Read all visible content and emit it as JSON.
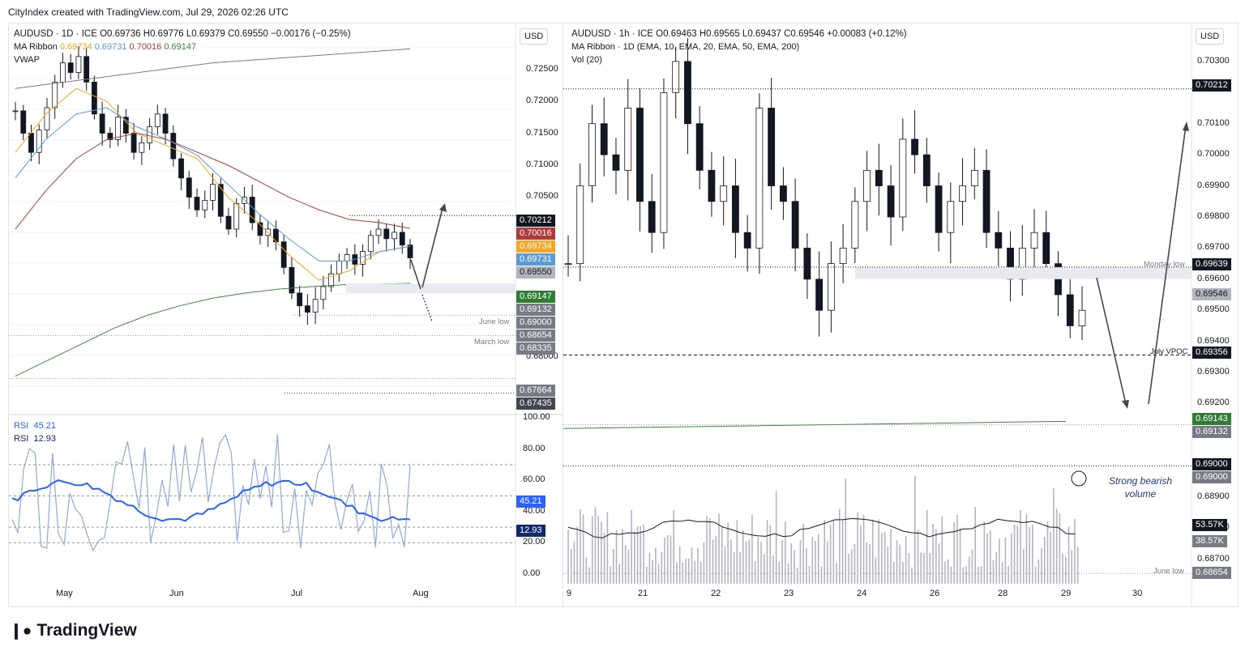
{
  "header": {
    "credit": "CityIndex created with TradingView.com, Jul 29, 2026 02:26 UTC"
  },
  "brand": {
    "logo_text": "TradingView"
  },
  "left_chart": {
    "symbol_line": "AUDUSD · 1D · ICE  O0.69736  H0.69776  L0.69379  C0.69550  −0.00176 (−0.25%)",
    "ribbon_label": "MA Ribbon",
    "ribbon_values": [
      {
        "value": "0.69734",
        "color": "#f5a623"
      },
      {
        "value": "0.69731",
        "color": "#5b9bd5"
      },
      {
        "value": "0.70016",
        "color": "#b03a3a"
      },
      {
        "value": "0.69147",
        "color": "#3a8a3a"
      }
    ],
    "vwap_label": "VWAP",
    "currency_button": "USD",
    "y_ticks": [
      "0.72500",
      "0.72000",
      "0.71500",
      "0.71000",
      "0.70500",
      "0.68000"
    ],
    "price_badges": [
      {
        "text": "0.70212",
        "color": "#131722"
      },
      {
        "text": "0.70016",
        "color": "#b03a3a"
      },
      {
        "text": "0.69734",
        "color": "#f5a623"
      },
      {
        "text": "0.69731",
        "color": "#5b9bd5"
      },
      {
        "text": "0.69550",
        "color": "#b2b5be"
      },
      {
        "text": "0.69147",
        "color": "#2e7d32"
      },
      {
        "text": "0.69132",
        "color": "#787b86"
      },
      {
        "text": "0.69000",
        "color": "#787b86"
      },
      {
        "text": "0.68654",
        "color": "#787b86"
      },
      {
        "text": "0.68335",
        "color": "#787b86"
      },
      {
        "text": "0.67664",
        "color": "#787b86"
      },
      {
        "text": "0.67435",
        "color": "#434651"
      }
    ],
    "level_labels": [
      "June low",
      "March low"
    ],
    "x_ticks": [
      "May",
      "Jun",
      "Jul",
      "Aug"
    ],
    "rsi": {
      "labels": [
        {
          "name": "RSI",
          "value": "45.21"
        },
        {
          "name": "RSI",
          "value": "12.93"
        }
      ],
      "y_ticks": [
        "100.00",
        "80.00",
        "60.00",
        "40.00",
        "20.00",
        "0.00"
      ],
      "badges": [
        {
          "text": "45.21",
          "color": "#2962ff"
        },
        {
          "text": "12.93",
          "color": "#0d2a6e"
        }
      ]
    }
  },
  "right_chart": {
    "symbol_line": "AUDUSD · 1h · ICE  O0.69463  H0.69565  L0.69437  C0.69546  +0.00083 (+0.12%)",
    "ribbon_line": "MA Ribbon · 1D (EMA, 10, EMA, 20, EMA, 50, EMA, 200)",
    "vol_label": "Vol (20)",
    "currency_button": "USD",
    "y_ticks": [
      "0.70300",
      "0.70100",
      "0.70000",
      "0.69900",
      "0.69800",
      "0.69700",
      "0.69600",
      "0.69500",
      "0.69400",
      "0.69300",
      "0.69200",
      "0.68900",
      "0.68800",
      "0.68700"
    ],
    "price_badges": [
      {
        "text": "0.70212",
        "color": "#131722"
      },
      {
        "text": "0.69639",
        "color": "#131722"
      },
      {
        "text": "0.69546",
        "color": "#b2b5be"
      },
      {
        "text": "0.69356",
        "color": "#131722"
      },
      {
        "text": "0.69143",
        "color": "#2e7d32"
      },
      {
        "text": "0.69132",
        "color": "#787b86"
      },
      {
        "text": "0.69000",
        "color": "#131722"
      },
      {
        "text": "0.69000",
        "color": "#787b86"
      },
      {
        "text": "53.57K",
        "color": "#131722"
      },
      {
        "text": "38.57K",
        "color": "#787b86"
      },
      {
        "text": "0.68654",
        "color": "#787b86"
      }
    ],
    "level_labels": [
      "Monday low",
      "July VPOC",
      "June low"
    ],
    "annotation": "Strong bearish volume",
    "x_ticks": [
      "9",
      "21",
      "22",
      "23",
      "24",
      "26",
      "28",
      "29",
      "30"
    ]
  },
  "chart_data": [
    {
      "type": "candlestick",
      "title": "AUDUSD · 1D · ICE",
      "x": [
        "May",
        "Jun",
        "Jul",
        "Aug"
      ],
      "ylim": [
        0.672,
        0.729
      ],
      "levels": {
        "resistance": 0.70212,
        "support_zone": [
          0.69132,
          0.69147
        ],
        "june_low": 0.68654,
        "march_low": 0.68335
      },
      "series": [
        {
          "name": "MA Ribbon 0.69734",
          "color": "#f5a623"
        },
        {
          "name": "MA Ribbon 0.69731",
          "color": "#5b9bd5"
        },
        {
          "name": "MA Ribbon 0.70016",
          "color": "#b03a3a"
        },
        {
          "name": "MA Ribbon 0.69147",
          "color": "#3a8a3a"
        }
      ],
      "last_close": 0.6955
    },
    {
      "type": "line",
      "title": "RSI",
      "ylim": [
        0,
        100
      ],
      "series": [
        {
          "name": "RSI 45.21",
          "last": 45.21
        },
        {
          "name": "RSI 12.93",
          "last": 12.93
        }
      ]
    },
    {
      "type": "candlestick",
      "title": "AUDUSD · 1h · ICE",
      "x": [
        "9",
        "21",
        "22",
        "23",
        "24",
        "26",
        "28",
        "29",
        "30"
      ],
      "ylim": [
        0.686,
        0.7037
      ],
      "levels": {
        "resistance": 0.70212,
        "monday_low": 0.69639,
        "july_vpoc": 0.69356,
        "ema200": 0.69143,
        "round": 0.69,
        "june_low": 0.68654
      },
      "last_close": 0.69546,
      "volume": {
        "label": "Vol (20)",
        "last": "38.57K",
        "ma": "53.57K"
      }
    }
  ]
}
